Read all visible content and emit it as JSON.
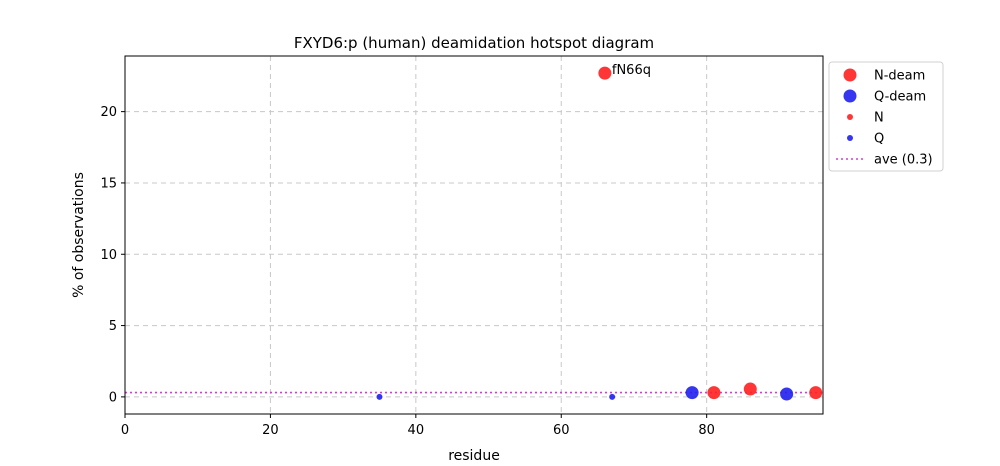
{
  "chart_data": {
    "type": "scatter",
    "title": "FXYD6:p (human) deamidation hotspot diagram",
    "xlabel": "residue",
    "ylabel": "% of observations",
    "xlim": [
      0,
      96
    ],
    "ylim": [
      -1.2,
      23.9
    ],
    "xticks": [
      0,
      20,
      40,
      60,
      80
    ],
    "yticks": [
      0,
      5,
      10,
      15,
      20
    ],
    "grid": true,
    "legend_position": "outside-top-right",
    "average": {
      "label": "ave (0.3)",
      "value": 0.3,
      "color": "#cc44cc"
    },
    "series": [
      {
        "name": "N-deam",
        "color": "#ff2020",
        "marker": "large",
        "points": [
          [
            66,
            22.7
          ],
          [
            81,
            0.3
          ],
          [
            86,
            0.55
          ],
          [
            95,
            0.3
          ]
        ]
      },
      {
        "name": "Q-deam",
        "color": "#2020ee",
        "marker": "large",
        "points": [
          [
            78,
            0.3
          ],
          [
            91,
            0.2
          ]
        ]
      },
      {
        "name": "N",
        "color": "#ff2020",
        "marker": "small",
        "points": []
      },
      {
        "name": "Q",
        "color": "#2020ee",
        "marker": "small",
        "points": [
          [
            35,
            0.0
          ],
          [
            67,
            0.0
          ]
        ]
      }
    ],
    "annotations": [
      {
        "text": "fN66q",
        "x": 66,
        "y": 22.7
      }
    ]
  }
}
